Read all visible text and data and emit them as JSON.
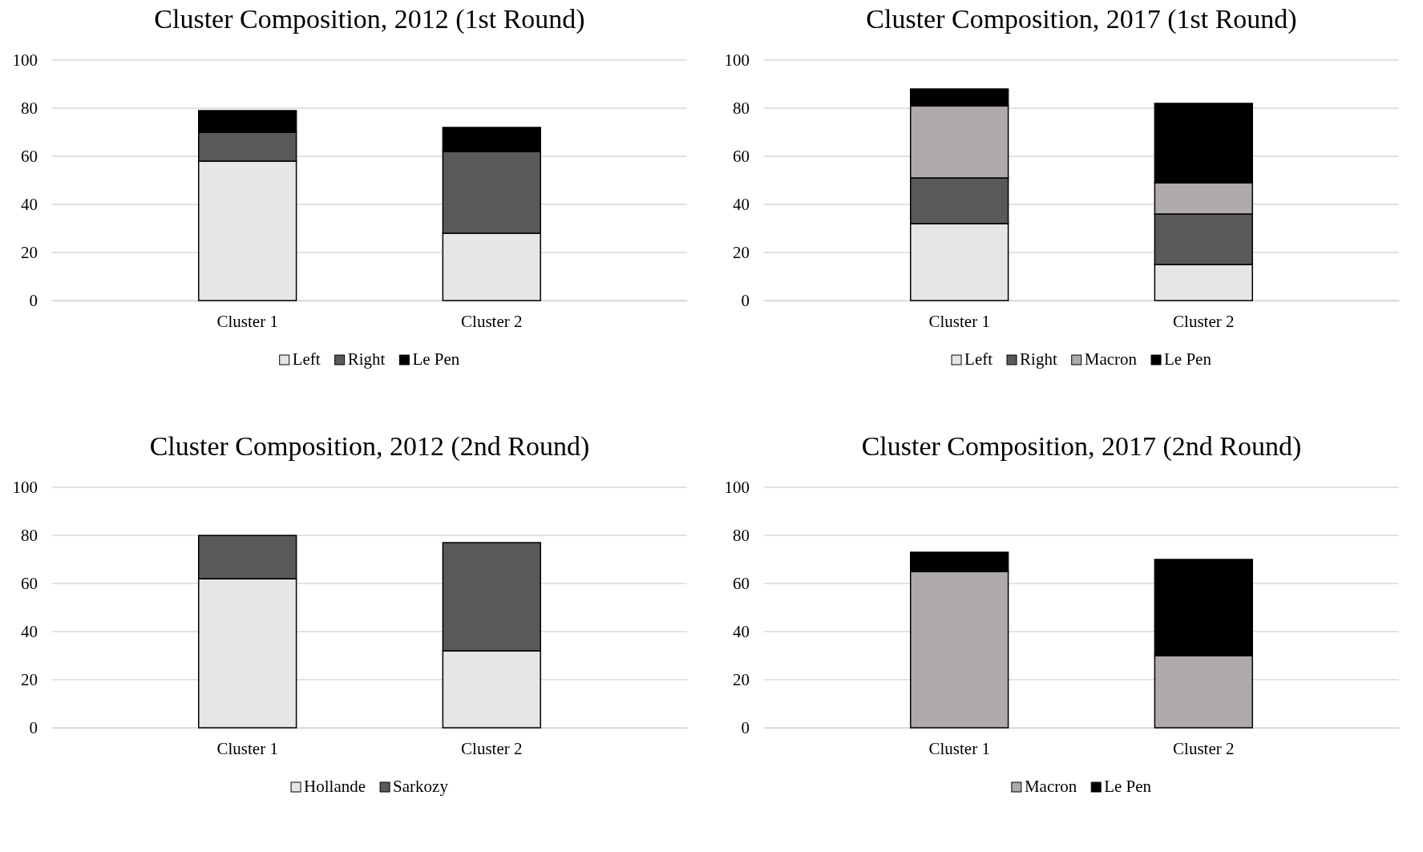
{
  "chart_data": [
    {
      "type": "bar",
      "title": "Cluster Composition, 2012 (1st Round)",
      "categories": [
        "Cluster 1",
        "Cluster 2"
      ],
      "stacked": true,
      "ylim": [
        0,
        100
      ],
      "yticks": [
        0,
        20,
        40,
        60,
        80,
        100
      ],
      "grid": "y",
      "legend": "bottom",
      "series": [
        {
          "name": "Left",
          "color": "#e6e6e6",
          "values": [
            58,
            28
          ]
        },
        {
          "name": "Right",
          "color": "#595959",
          "values": [
            12,
            34
          ]
        },
        {
          "name": "Le Pen",
          "color": "#000000",
          "values": [
            9,
            10
          ]
        }
      ]
    },
    {
      "type": "bar",
      "title": "Cluster Composition, 2017 (1st Round)",
      "categories": [
        "Cluster 1",
        "Cluster 2"
      ],
      "stacked": true,
      "ylim": [
        0,
        100
      ],
      "yticks": [
        0,
        20,
        40,
        60,
        80,
        100
      ],
      "grid": "y",
      "legend": "bottom",
      "series": [
        {
          "name": "Left",
          "color": "#e6e6e6",
          "values": [
            32,
            15
          ]
        },
        {
          "name": "Right",
          "color": "#595959",
          "values": [
            19,
            21
          ]
        },
        {
          "name": "Macron",
          "color": "#aeaaaa",
          "values": [
            30,
            13
          ]
        },
        {
          "name": "Le Pen",
          "color": "#000000",
          "values": [
            7,
            33
          ]
        }
      ]
    },
    {
      "type": "bar",
      "title": "Cluster Composition, 2012 (2nd Round)",
      "categories": [
        "Cluster 1",
        "Cluster 2"
      ],
      "stacked": true,
      "ylim": [
        0,
        100
      ],
      "yticks": [
        0,
        20,
        40,
        60,
        80,
        100
      ],
      "grid": "y",
      "legend": "bottom",
      "series": [
        {
          "name": "Hollande",
          "color": "#e6e6e6",
          "values": [
            62,
            32
          ]
        },
        {
          "name": "Sarkozy",
          "color": "#595959",
          "values": [
            18,
            45
          ]
        }
      ]
    },
    {
      "type": "bar",
      "title": "Cluster Composition, 2017 (2nd Round)",
      "categories": [
        "Cluster 1",
        "Cluster 2"
      ],
      "stacked": true,
      "ylim": [
        0,
        100
      ],
      "yticks": [
        0,
        20,
        40,
        60,
        80,
        100
      ],
      "grid": "y",
      "legend": "bottom",
      "series": [
        {
          "name": "Macron",
          "color": "#aeaaaa",
          "values": [
            65,
            30
          ]
        },
        {
          "name": "Le Pen",
          "color": "#000000",
          "values": [
            8,
            40
          ]
        }
      ]
    }
  ]
}
